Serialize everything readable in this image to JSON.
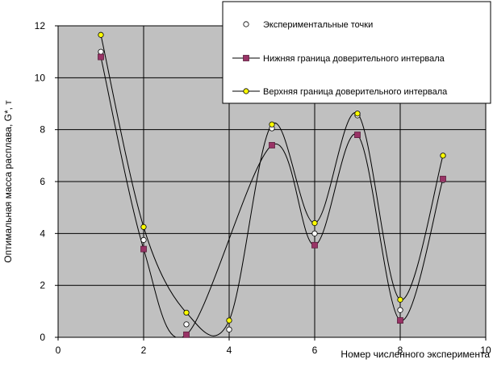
{
  "chart_data": {
    "type": "scatter",
    "title": "",
    "xlabel": "Номер численного эксперимента",
    "ylabel": "Оптимальная масса расплава, G*, т",
    "xlim": [
      0,
      10
    ],
    "ylim": [
      0,
      12
    ],
    "xticks": [
      0,
      2,
      4,
      6,
      8,
      10
    ],
    "yticks": [
      0,
      2,
      4,
      6,
      8,
      10,
      12
    ],
    "grid": true,
    "legend_position": "top-right",
    "plot_background": "#c0c0c0",
    "series": [
      {
        "name": "Экспериментальные точки",
        "marker": "circle",
        "marker_fill": "#ffffff",
        "line": false,
        "x": [
          1,
          2,
          3,
          4,
          5,
          6,
          7,
          8,
          9
        ],
        "y": [
          11.0,
          3.75,
          0.5,
          0.3,
          8.05,
          4.0,
          8.55,
          1.05,
          6.05
        ]
      },
      {
        "name": "Нижняя граница доверительного интервала",
        "marker": "square",
        "marker_fill": "#993366",
        "line": true,
        "x": [
          1,
          2,
          3,
          5,
          6,
          7,
          8,
          9
        ],
        "y": [
          10.8,
          3.4,
          0.1,
          7.4,
          3.55,
          7.8,
          0.65,
          6.1
        ]
      },
      {
        "name": "Верхняя граница доверительного интервала",
        "marker": "circle",
        "marker_fill": "#ffff00",
        "line": true,
        "x": [
          1,
          2,
          3,
          4,
          5,
          6,
          7,
          8,
          9
        ],
        "y": [
          11.65,
          4.25,
          0.95,
          0.65,
          8.2,
          4.4,
          8.62,
          1.45,
          7.0
        ]
      }
    ]
  }
}
